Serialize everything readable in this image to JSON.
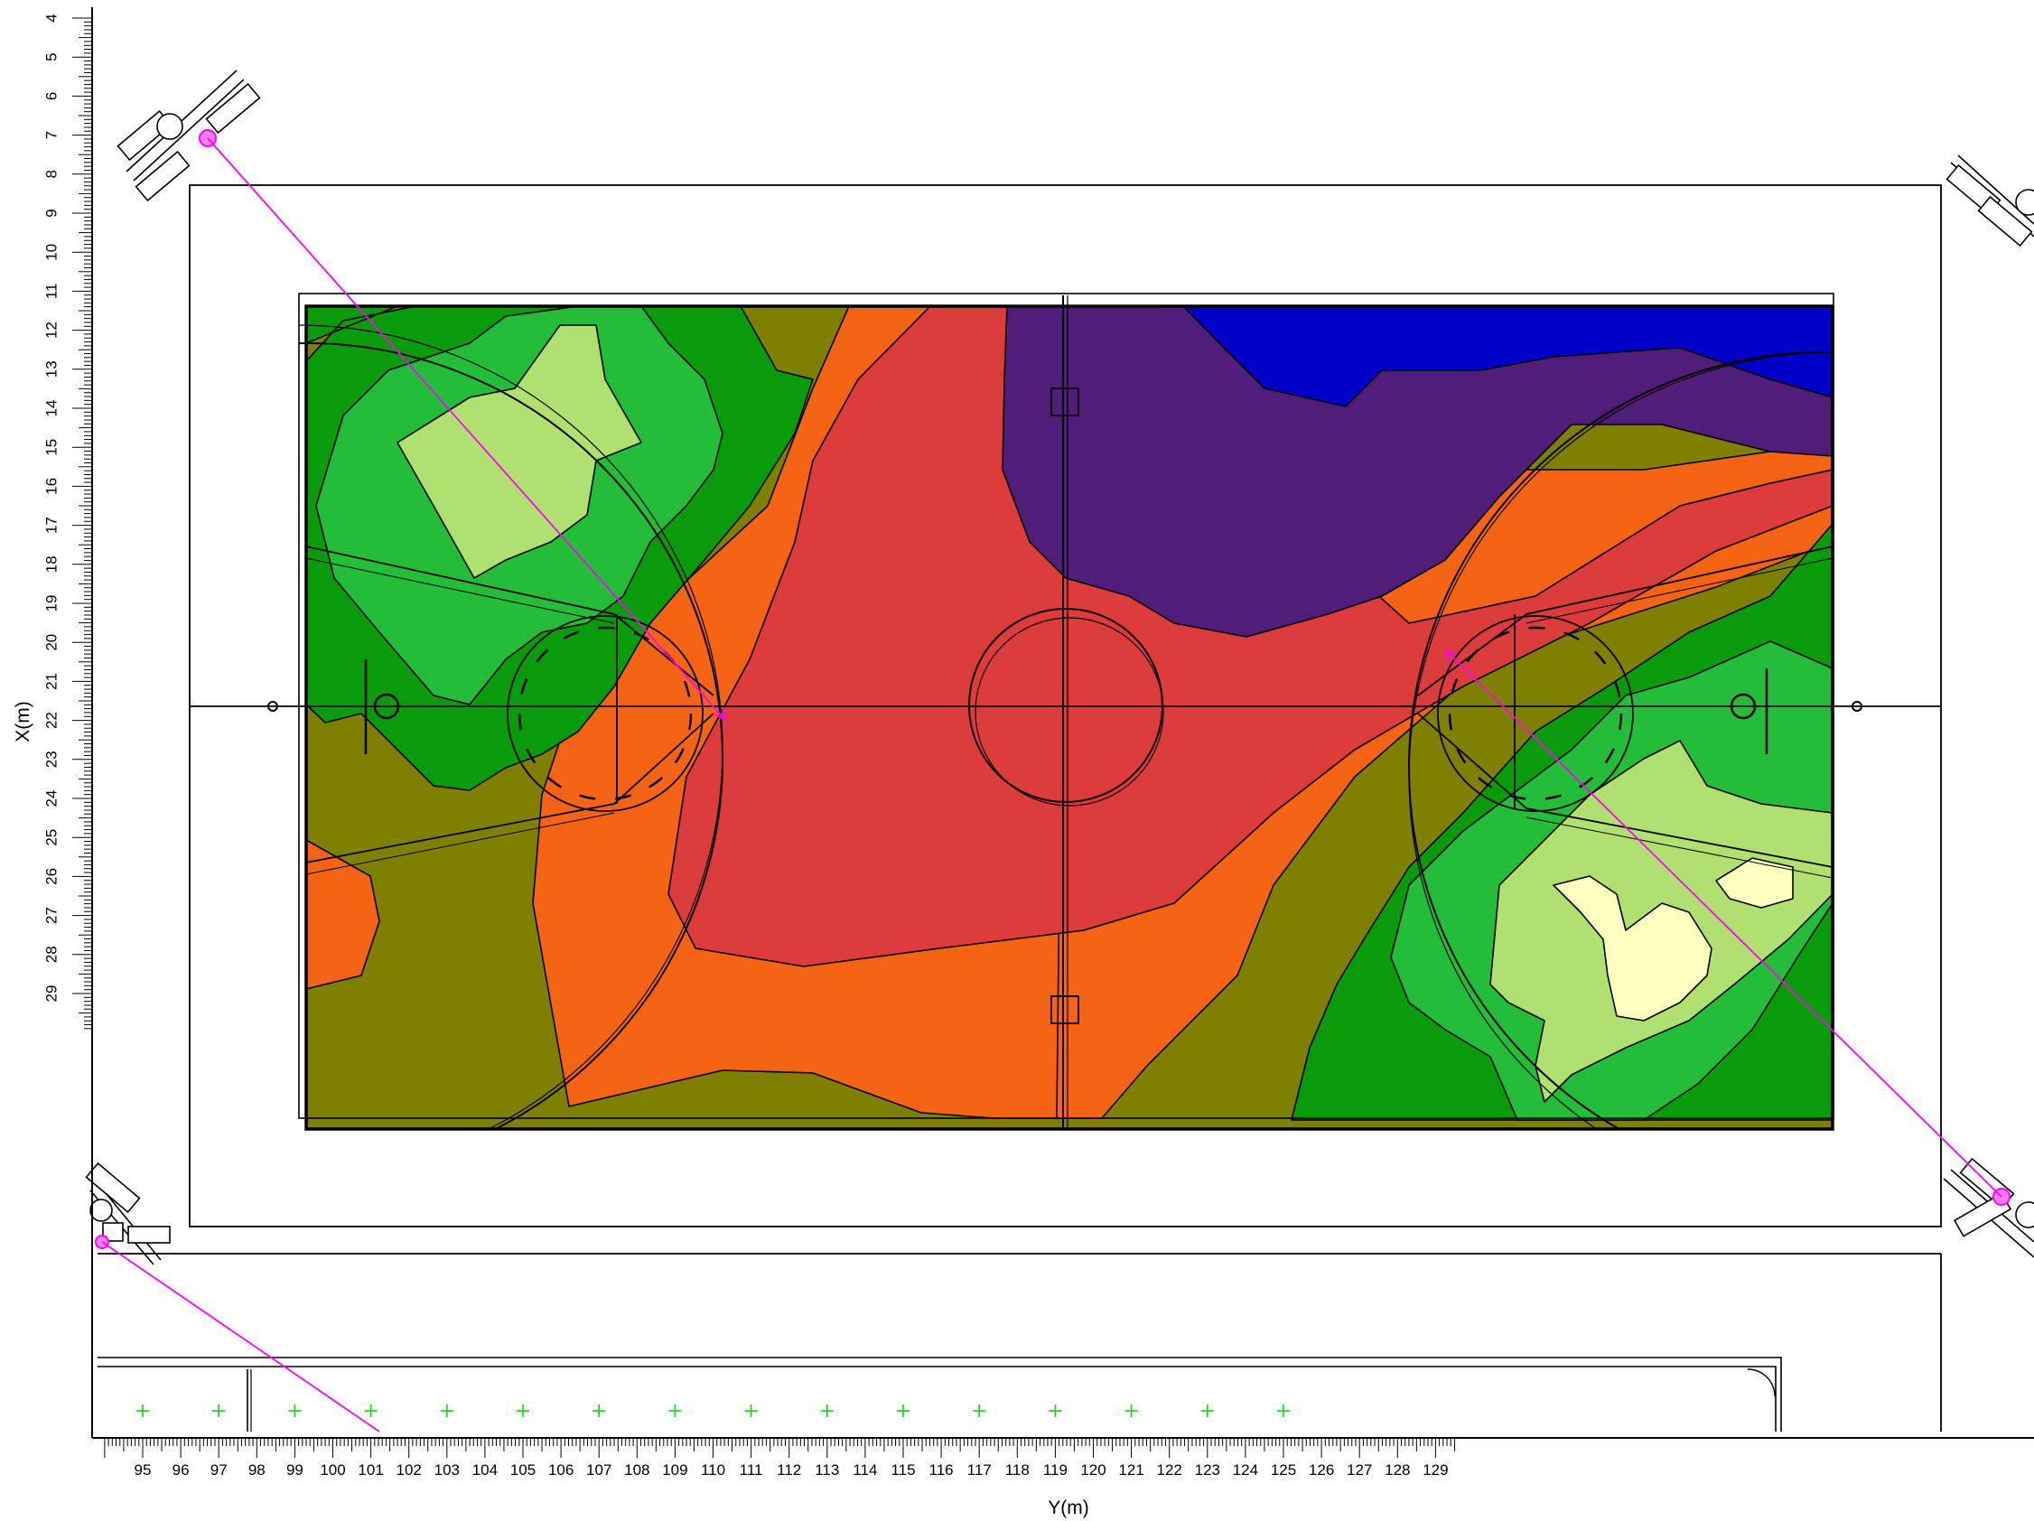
{
  "axes": {
    "x_label": "Y(m)",
    "y_label": "X(m)",
    "x_range": [
      94,
      129.5
    ],
    "y_range": [
      4,
      29.9
    ],
    "x_ticks": [
      95,
      96,
      97,
      98,
      99,
      100,
      101,
      102,
      103,
      104,
      105,
      106,
      107,
      108,
      109,
      110,
      111,
      112,
      113,
      114,
      115,
      116,
      117,
      118,
      119,
      120,
      121,
      122,
      123,
      124,
      125,
      126,
      127,
      128,
      129
    ],
    "y_ticks": [
      4,
      5,
      6,
      7,
      8,
      9,
      10,
      11,
      12,
      13,
      14,
      15,
      16,
      17,
      18,
      19,
      20,
      21,
      22,
      23,
      24,
      25,
      26,
      27,
      28,
      29
    ]
  },
  "colors": {
    "level_1": "#0000c8",
    "level_2": "#501e78",
    "level_3": "#dc3c3c",
    "level_4": "#f56414",
    "level_5": "#808000",
    "level_6": "#0a9b0a",
    "level_7": "#24bd3a",
    "level_8": "#b0e070",
    "level_9": "#ffffc0",
    "aiming_line": "#ff00ff",
    "grid_marker": "#00dd00",
    "outline": "#000000"
  },
  "calc_grid_points": [
    95,
    97,
    99,
    101,
    103,
    105,
    107,
    109,
    111,
    113,
    115,
    117,
    119,
    121,
    123,
    125
  ]
}
